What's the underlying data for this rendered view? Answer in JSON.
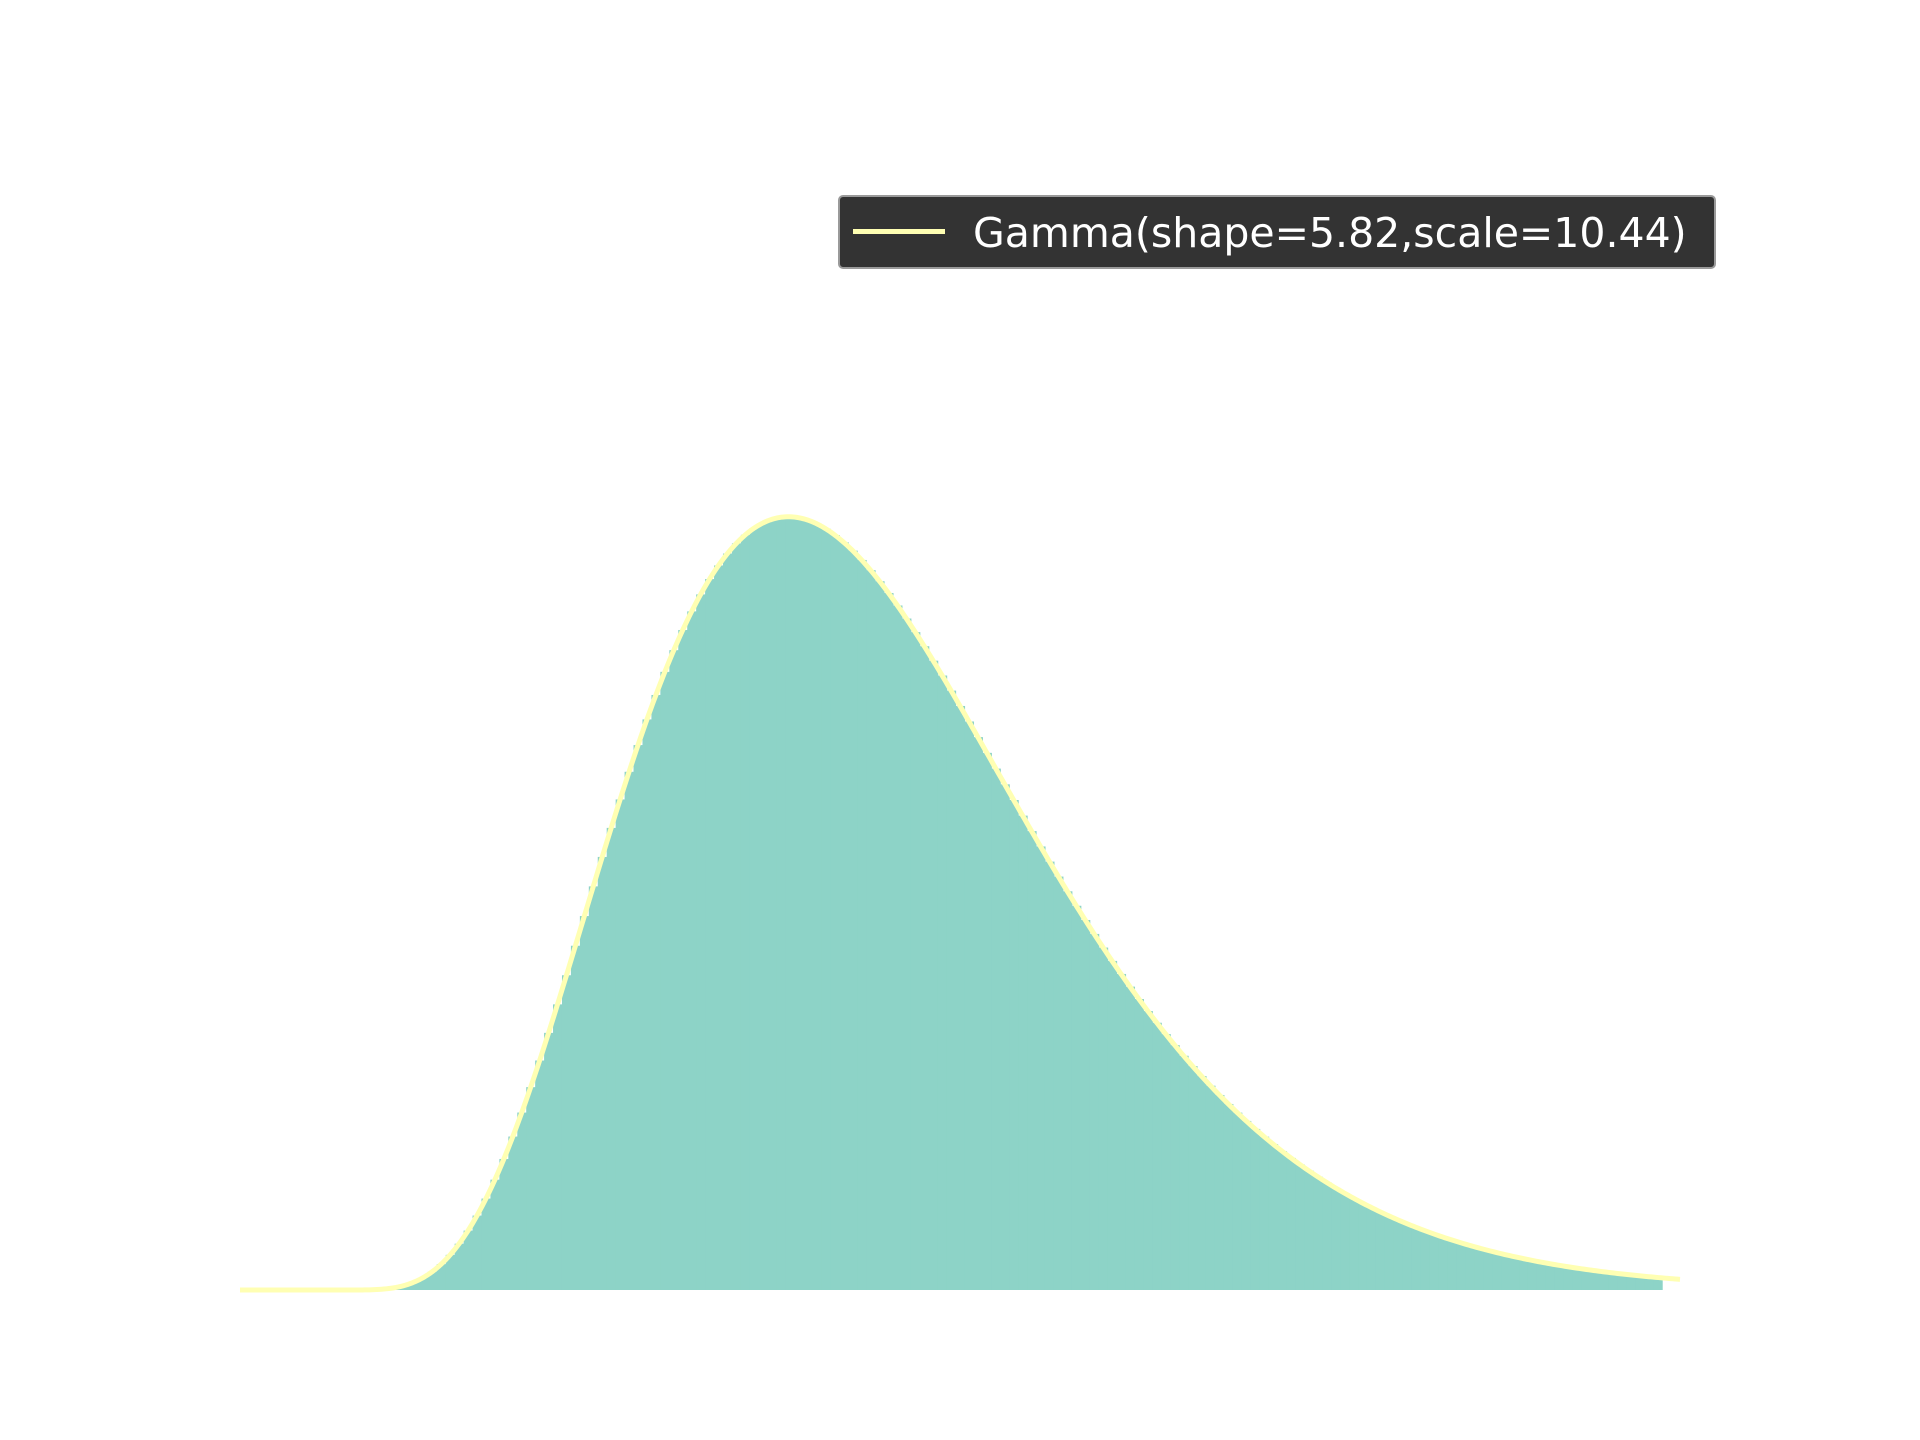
{
  "chart_data": {
    "type": "area",
    "title": "",
    "xlabel": "",
    "ylabel": "",
    "xlim": [
      -11,
      150
    ],
    "ylim": [
      0,
      0.025
    ],
    "grid": false,
    "axes_visible": false,
    "legend_placement": "top-right",
    "series": [
      {
        "name": "",
        "kind": "histogram",
        "color": "#8dd3c7",
        "bin_edges_range": [
          -10,
          148
        ],
        "bin_width": 1
      },
      {
        "name": "Gamma(shape=5.82,scale=10.44)",
        "kind": "pdf-curve",
        "color": "#ffffb3",
        "distribution": "gamma",
        "shape": 5.82,
        "scale": 10.44,
        "x_range": [
          -11,
          150
        ]
      }
    ]
  },
  "legend": {
    "label": "Gamma(shape=5.82,scale=10.44)"
  },
  "colors": {
    "background": "#ffffff",
    "fill": "#8dd3c7",
    "line": "#ffffb3",
    "legend_background": "#333333",
    "legend_text": "#ffffff"
  }
}
